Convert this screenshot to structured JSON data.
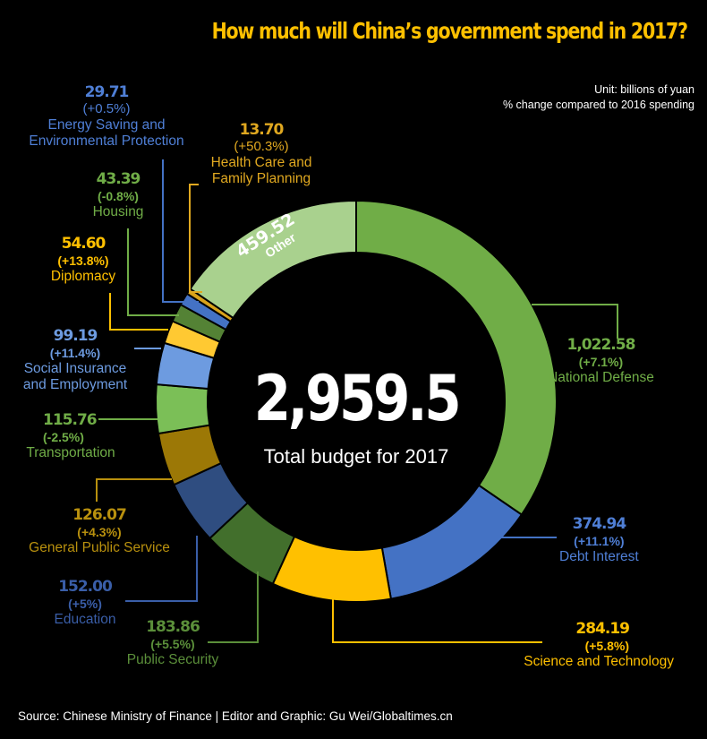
{
  "title": "How much will China’s government spend in 2017?",
  "unit_note": [
    "Unit: billions of yuan",
    "% change compared to 2016 spending"
  ],
  "center": {
    "total": "2,959.5",
    "subtitle": "Total budget for 2017"
  },
  "source": "Source: Chinese Ministry of Finance  |  Editor and Graphic: Gu Wei/Globaltimes.cn",
  "chart_data": {
    "type": "pie",
    "donut": true,
    "title": "How much will China’s government spend in 2017?",
    "unit": "billions of yuan",
    "total": 2959.5,
    "slices": [
      {
        "name": "National Defense",
        "value": 1022.58,
        "value_label": "1,022.58",
        "change": "(+7.1%)",
        "color": "#70ad47",
        "label_color": "#70ad47"
      },
      {
        "name": "Debt Interest",
        "value": 374.94,
        "value_label": "374.94",
        "change": "(+11.1%)",
        "color": "#4472c4",
        "label_color": "#4f7fd6"
      },
      {
        "name": "Science and Technology",
        "value": 284.19,
        "value_label": "284.19",
        "change": "(+5.8%)",
        "color": "#ffc000",
        "label_color": "#ffc000"
      },
      {
        "name": "Public Security",
        "value": 183.86,
        "value_label": "183.86",
        "change": "(+5.5%)",
        "color": "#426f2c",
        "label_color": "#5b8f3a"
      },
      {
        "name": "Education",
        "value": 152.0,
        "value_label": "152.00",
        "change": "(+5%)",
        "color": "#2f4d80",
        "label_color": "#3a5ea8"
      },
      {
        "name": "General Public Service",
        "value": 126.07,
        "value_label": "126.07",
        "change": "(+4.3%)",
        "color": "#9c7806",
        "label_color": "#b8900e"
      },
      {
        "name": "Transportation",
        "value": 115.76,
        "value_label": "115.76",
        "change": "(-2.5%)",
        "color": "#7bbf57",
        "label_color": "#70ad47"
      },
      {
        "name": "Social Insurance and Employment",
        "value": 99.19,
        "value_label": "99.19",
        "change": "(+11.4%)",
        "color": "#6d9be0",
        "label_color": "#6d9be0"
      },
      {
        "name": "Diplomacy",
        "value": 54.6,
        "value_label": "54.60",
        "change": "(+13.8%)",
        "color": "#ffc932",
        "label_color": "#ffc000"
      },
      {
        "name": "Housing",
        "value": 43.39,
        "value_label": "43.39",
        "change": "(-0.8%)",
        "color": "#548235",
        "label_color": "#70ad47"
      },
      {
        "name": "Energy Saving and Environmental Protection",
        "value": 29.71,
        "value_label": "29.71",
        "change": "(+0.5%)",
        "color": "#4472c4",
        "label_color": "#4f7fd6"
      },
      {
        "name": "Health Care and Family Planning",
        "value": 13.7,
        "value_label": "13.70",
        "change": "(+50.3%)",
        "color": "#d9a21b",
        "label_color": "#e0a820"
      },
      {
        "name": "Other",
        "value": 459.52,
        "value_label": "459.52",
        "change": "",
        "color": "#a9d18e",
        "label_color": "#ffffff"
      }
    ]
  },
  "labels": {
    "defense": {
      "v": "1,022.58",
      "p": "(+7.1%)",
      "n": "National Defense"
    },
    "debt": {
      "v": "374.94",
      "p": "(+11.1%)",
      "n": "Debt Interest"
    },
    "science": {
      "v": "284.19",
      "p": "(+5.8%)",
      "n": "Science and Technology"
    },
    "security": {
      "v": "183.86",
      "p": "(+5.5%)",
      "n": "Public Security"
    },
    "education": {
      "v": "152.00",
      "p": "(+5%)",
      "n": "Education"
    },
    "general": {
      "v": "126.07",
      "p": "(+4.3%)",
      "n": "General Public Service"
    },
    "transport": {
      "v": "115.76",
      "p": "(-2.5%)",
      "n": "Transportation"
    },
    "social": {
      "v": "99.19",
      "p": "(+11.4%)",
      "n1": "Social Insurance",
      "n2": "and Employment"
    },
    "diplomacy": {
      "v": "54.60",
      "p": "(+13.8%)",
      "n": "Diplomacy"
    },
    "housing": {
      "v": "43.39",
      "p": "(-0.8%)",
      "n": "Housing"
    },
    "energy": {
      "v": "29.71",
      "p": "(+0.5%)",
      "n1": "Energy Saving and",
      "n2": "Environmental Protection"
    },
    "health": {
      "v": "13.70",
      "p": "(+50.3%)",
      "n1": "Health Care and",
      "n2": "Family Planning"
    },
    "other": {
      "v": "459.52",
      "n": "Other"
    }
  }
}
